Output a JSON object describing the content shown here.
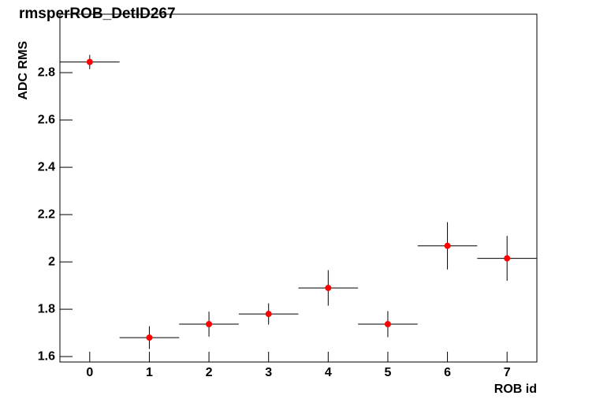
{
  "chart_data": {
    "type": "errorbar",
    "title": "rmsperROB_DetID267",
    "x_label": "ROB id",
    "y_label": "ADC RMS",
    "x": [
      0,
      1,
      2,
      3,
      4,
      5,
      6,
      7
    ],
    "values": [
      2.845,
      1.68,
      1.737,
      1.78,
      1.89,
      1.737,
      2.068,
      2.015
    ],
    "errors": [
      0.03,
      0.048,
      0.053,
      0.045,
      0.075,
      0.055,
      0.1,
      0.095
    ],
    "x_errors": [
      0.5,
      0.5,
      0.5,
      0.5,
      0.5,
      0.5,
      0.5,
      0.5
    ],
    "color": "#ff0000",
    "xlim": [
      -0.5,
      7.5
    ],
    "xticks": [
      0,
      1,
      2,
      3,
      4,
      5,
      6,
      7
    ],
    "ylim": [
      1.577,
      3.047
    ],
    "yticks": [
      1.6,
      1.8,
      2,
      2.2,
      2.4,
      2.6,
      2.8
    ]
  }
}
